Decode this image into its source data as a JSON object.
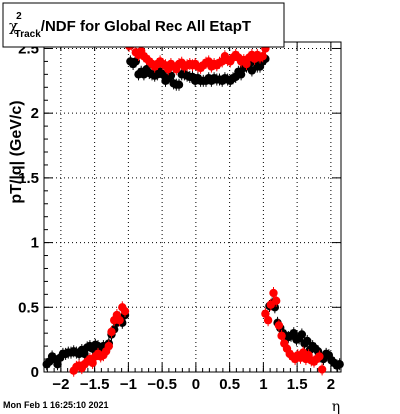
{
  "title": {
    "chi": "χ",
    "sup": "2",
    "sub": "Track",
    "rest": "/NDF for Global Rec All EtapT"
  },
  "ylabel": "pT/|q| (GeV/c)",
  "xlabel": "η",
  "timestamp": "Mon Feb  1 16:25:10 2021",
  "colors": {
    "series_black": "#000000",
    "series_red": "#ff0000",
    "grid": "#000000"
  },
  "chart_data": {
    "type": "scatter",
    "title": "χ²_Track/NDF for Global Rec All EtapT",
    "xlabel": "η",
    "ylabel": "pT/|q| (GeV/c)",
    "xlim": [
      -2.25,
      2.15
    ],
    "ylim": [
      0,
      2.55
    ],
    "grid": true,
    "x_ticks": [
      -2,
      -1.5,
      -1,
      -0.5,
      0,
      0.5,
      1,
      1.5,
      2
    ],
    "x_tick_labels": [
      "−2",
      "−1.5",
      "−1",
      "−0.5",
      "0",
      "0.5",
      "1",
      "1.5",
      "2"
    ],
    "y_ticks": [
      0,
      0.5,
      1,
      1.5,
      2,
      2.5
    ],
    "y_tick_labels": [
      "0",
      "0.5",
      "1",
      "1.5",
      "2",
      "2.5"
    ],
    "series": [
      {
        "color": "#000000",
        "x": [
          -2.21,
          -2.17,
          -2.13,
          -2.09,
          -2.05,
          -2.01,
          -1.97,
          -1.93,
          -1.89,
          -1.85,
          -1.81,
          -1.77,
          -1.73,
          -1.69,
          -1.65,
          -1.61,
          -1.57,
          -1.53,
          -1.49,
          -1.45,
          -1.41,
          -1.37,
          -1.33,
          -1.29,
          -1.25,
          -1.21,
          -1.17,
          -1.13,
          -1.09,
          -1.05,
          -0.97,
          -0.93,
          -0.89,
          -0.85,
          -0.81,
          -0.77,
          -0.73,
          -0.69,
          -0.65,
          -0.61,
          -0.57,
          -0.53,
          -0.49,
          -0.45,
          -0.41,
          -0.37,
          -0.33,
          -0.29,
          -0.25,
          -0.21,
          -0.17,
          -0.13,
          -0.09,
          -0.05,
          -0.01,
          0.03,
          0.07,
          0.11,
          0.15,
          0.19,
          0.23,
          0.27,
          0.31,
          0.35,
          0.39,
          0.43,
          0.47,
          0.51,
          0.55,
          0.59,
          0.63,
          0.67,
          0.71,
          0.75,
          0.79,
          0.83,
          0.87,
          0.91,
          0.95,
          0.99,
          1.03,
          1.09,
          1.13,
          1.17,
          1.21,
          1.25,
          1.29,
          1.33,
          1.37,
          1.41,
          1.45,
          1.49,
          1.53,
          1.57,
          1.61,
          1.65,
          1.69,
          1.73,
          1.77,
          1.81,
          1.85,
          1.89,
          1.93,
          1.97,
          2.01,
          2.05,
          2.09,
          2.13
        ],
        "y": [
          0.06,
          0.08,
          0.12,
          0.1,
          0.06,
          0.11,
          0.14,
          0.14,
          0.15,
          0.15,
          0.16,
          0.15,
          0.14,
          0.17,
          0.14,
          0.19,
          0.2,
          0.18,
          0.21,
          0.2,
          0.16,
          0.2,
          0.17,
          0.22,
          0.29,
          0.33,
          0.38,
          0.42,
          0.38,
          0.44,
          2.4,
          2.38,
          2.4,
          2.3,
          2.32,
          2.3,
          2.34,
          2.31,
          2.3,
          2.29,
          2.3,
          2.32,
          2.3,
          2.25,
          2.27,
          2.29,
          2.23,
          2.22,
          2.22,
          2.3,
          2.3,
          2.29,
          2.28,
          2.28,
          2.25,
          2.27,
          2.25,
          2.25,
          2.25,
          2.27,
          2.25,
          2.27,
          2.26,
          2.26,
          2.25,
          2.27,
          2.26,
          2.25,
          2.27,
          2.28,
          2.32,
          2.3,
          2.35,
          2.36,
          2.38,
          2.33,
          2.4,
          2.36,
          2.36,
          2.4,
          2.42,
          0.51,
          0.53,
          0.5,
          0.38,
          0.34,
          0.3,
          0.28,
          0.27,
          0.28,
          0.3,
          0.25,
          0.26,
          0.29,
          0.22,
          0.24,
          0.17,
          0.2,
          0.18,
          0.16,
          0.12,
          0.1,
          0.14,
          0.13,
          0.09,
          0.07,
          0.05,
          0.06
        ]
      },
      {
        "color": "#ff0000",
        "x": [
          -1.81,
          -1.77,
          -1.73,
          -1.69,
          -1.65,
          -1.61,
          -1.57,
          -1.53,
          -1.49,
          -1.45,
          -1.41,
          -1.37,
          -1.33,
          -1.29,
          -1.25,
          -1.21,
          -1.17,
          -1.13,
          -1.09,
          -1.05,
          -0.99,
          -0.95,
          -0.89,
          -0.85,
          -0.81,
          -0.77,
          -0.73,
          -0.69,
          -0.65,
          -0.61,
          -0.57,
          -0.53,
          -0.49,
          -0.45,
          -0.41,
          -0.37,
          -0.33,
          -0.29,
          -0.25,
          -0.21,
          -0.17,
          -0.13,
          -0.09,
          -0.05,
          -0.01,
          0.03,
          0.07,
          0.11,
          0.15,
          0.19,
          0.23,
          0.27,
          0.31,
          0.35,
          0.39,
          0.43,
          0.47,
          0.51,
          0.55,
          0.59,
          0.63,
          0.67,
          0.71,
          0.75,
          0.79,
          0.83,
          0.87,
          0.91,
          0.95,
          0.99,
          1.03,
          1.03,
          1.07,
          1.11,
          1.15,
          1.19,
          1.23,
          1.27,
          1.31,
          1.35,
          1.39,
          1.43,
          1.47,
          1.51,
          1.55,
          1.59,
          1.63,
          1.67,
          1.71,
          1.75,
          1.79,
          1.83,
          1.87
        ],
        "y": [
          0.01,
          0.04,
          0.05,
          0.03,
          0.06,
          0.08,
          0.1,
          0.07,
          0.12,
          0.14,
          0.12,
          0.13,
          0.16,
          0.2,
          0.31,
          0.4,
          0.44,
          0.4,
          0.5,
          0.47,
          2.52,
          2.53,
          2.47,
          2.45,
          2.48,
          2.44,
          2.42,
          2.4,
          2.38,
          2.36,
          2.38,
          2.4,
          2.38,
          2.37,
          2.34,
          2.38,
          2.36,
          2.34,
          2.38,
          2.39,
          2.36,
          2.37,
          2.38,
          2.37,
          2.38,
          2.36,
          2.35,
          2.37,
          2.39,
          2.4,
          2.36,
          2.38,
          2.37,
          2.39,
          2.4,
          2.44,
          2.41,
          2.4,
          2.43,
          2.45,
          2.43,
          2.4,
          2.41,
          2.38,
          2.43,
          2.45,
          2.42,
          2.45,
          2.43,
          2.44,
          2.5,
          0.45,
          0.4,
          0.52,
          0.61,
          0.55,
          0.36,
          0.28,
          0.22,
          0.18,
          0.14,
          0.12,
          0.1,
          0.13,
          0.11,
          0.15,
          0.1,
          0.13,
          0.09,
          0.08,
          0.1,
          0.12,
          0.02
        ]
      }
    ]
  }
}
